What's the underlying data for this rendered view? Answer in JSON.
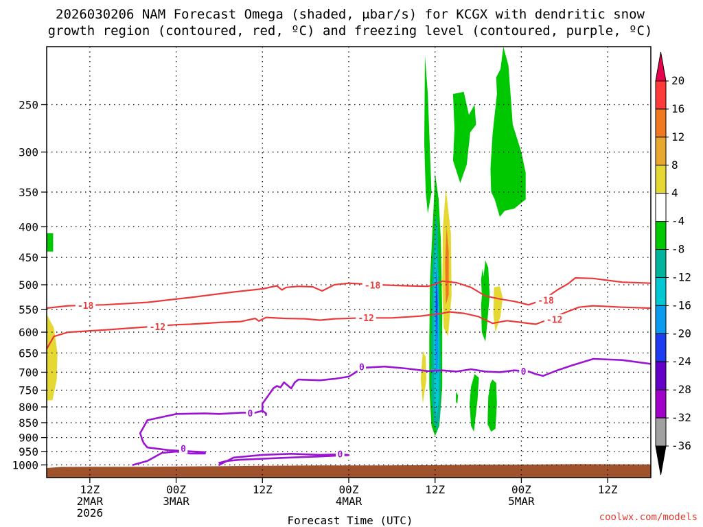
{
  "chart_data": {
    "type": "heatmap",
    "title_line1": "2026030206 NAM Forecast Omega (shaded, μbar/s) for KCGX with dendritic snow",
    "title_line2": "growth region (contoured, red, ºC) and freezing level (contoured, purple, ºC)",
    "xlabel": "Forecast Time (UTC)",
    "xlim": [
      6,
      90
    ],
    "ylim": [
      1050,
      200
    ],
    "y_ticks": [
      250,
      300,
      350,
      400,
      450,
      500,
      550,
      600,
      650,
      700,
      750,
      800,
      850,
      900,
      950,
      1000
    ],
    "x_ticks": [
      {
        "t": 12,
        "lines": [
          "12Z",
          "2MAR",
          "2026"
        ]
      },
      {
        "t": 24,
        "lines": [
          "00Z",
          "3MAR"
        ]
      },
      {
        "t": 36,
        "lines": [
          "12Z"
        ]
      },
      {
        "t": 48,
        "lines": [
          "00Z",
          "4MAR"
        ]
      },
      {
        "t": 60,
        "lines": [
          "12Z"
        ]
      },
      {
        "t": 72,
        "lines": [
          "00Z",
          "5MAR"
        ]
      },
      {
        "t": 84,
        "lines": [
          "12Z"
        ]
      }
    ],
    "grid": true,
    "colorbar": {
      "labels": [
        "20",
        "16",
        "12",
        "8",
        "4",
        "-4",
        "-8",
        "-12",
        "-16",
        "-20",
        "-24",
        "-28",
        "-32",
        "-36"
      ],
      "colors": [
        "#e8004f",
        "#ff3a3a",
        "#f07820",
        "#e8a830",
        "#e6d832",
        "#ffffff",
        "#00c800",
        "#00b49b",
        "#00c8d2",
        "#0a9bf0",
        "#1e3cf0",
        "#6400c8",
        "#a000c8",
        "#a0a0a0",
        "#000000"
      ]
    },
    "contour_labels": {
      "red_18": "-18",
      "red_12": "-12",
      "purple_0": "0"
    },
    "red_minus18": [
      [
        6,
        547
      ],
      [
        9,
        542
      ],
      [
        14,
        540
      ],
      [
        20,
        535
      ],
      [
        26,
        525
      ],
      [
        32,
        514
      ],
      [
        36,
        508
      ],
      [
        38,
        502
      ],
      [
        38.7,
        510
      ],
      [
        39.3,
        505
      ],
      [
        41,
        503
      ],
      [
        43,
        504
      ],
      [
        44.3,
        512
      ],
      [
        46,
        500
      ],
      [
        48,
        497
      ],
      [
        52,
        500
      ],
      [
        56,
        502
      ],
      [
        59,
        503
      ],
      [
        60,
        499
      ],
      [
        61,
        493
      ],
      [
        63,
        496
      ],
      [
        65,
        505
      ],
      [
        67,
        522
      ],
      [
        69,
        528
      ],
      [
        71,
        533
      ],
      [
        73,
        540
      ],
      [
        75,
        530
      ],
      [
        77,
        510
      ],
      [
        78.5,
        498
      ],
      [
        79.5,
        487
      ],
      [
        82,
        488
      ],
      [
        86,
        495
      ],
      [
        90,
        497
      ]
    ],
    "red_minus12": [
      [
        6,
        640
      ],
      [
        7,
        610
      ],
      [
        9,
        600
      ],
      [
        14,
        595
      ],
      [
        20,
        588
      ],
      [
        24,
        583
      ],
      [
        26,
        582
      ],
      [
        30,
        578
      ],
      [
        33,
        576
      ],
      [
        35,
        569
      ],
      [
        35.5,
        575
      ],
      [
        36.5,
        567
      ],
      [
        39,
        569
      ],
      [
        42,
        570
      ],
      [
        44,
        573
      ],
      [
        46,
        570
      ],
      [
        50,
        568
      ],
      [
        54,
        568
      ],
      [
        58,
        564
      ],
      [
        61,
        558
      ],
      [
        62,
        555
      ],
      [
        64,
        558
      ],
      [
        66,
        565
      ],
      [
        68,
        580
      ],
      [
        70,
        574
      ],
      [
        72,
        578
      ],
      [
        74,
        582
      ],
      [
        76,
        570
      ],
      [
        78,
        557
      ],
      [
        80,
        545
      ],
      [
        82,
        542
      ],
      [
        86,
        545
      ],
      [
        90,
        547
      ]
    ],
    "purple_0_main": [
      [
        18,
        1000
      ],
      [
        20,
        985
      ],
      [
        22,
        955
      ],
      [
        24,
        950
      ],
      [
        26,
        957
      ],
      [
        28,
        957
      ],
      [
        28,
        952
      ],
      [
        23,
        945
      ],
      [
        20,
        935
      ],
      [
        19.5,
        920
      ],
      [
        19.3,
        908
      ],
      [
        19,
        885
      ],
      [
        20,
        842
      ],
      [
        24,
        822
      ],
      [
        28,
        820
      ],
      [
        30,
        822
      ],
      [
        33,
        818
      ],
      [
        35,
        818
      ],
      [
        36,
        812
      ],
      [
        36.5,
        820
      ],
      [
        36.5,
        825
      ]
    ],
    "purple_0_upper": [
      [
        36,
        810
      ],
      [
        36,
        790
      ],
      [
        36.5,
        775
      ],
      [
        37,
        760
      ],
      [
        37.5,
        745
      ],
      [
        38,
        738
      ],
      [
        38.5,
        742
      ],
      [
        39,
        728
      ],
      [
        40,
        745
      ],
      [
        40.5,
        728
      ],
      [
        41,
        720
      ],
      [
        44,
        722
      ],
      [
        46,
        718
      ],
      [
        48,
        712
      ],
      [
        49,
        700
      ],
      [
        50,
        688
      ],
      [
        53,
        685
      ],
      [
        56,
        690
      ],
      [
        59,
        697
      ],
      [
        61,
        695
      ],
      [
        63,
        698
      ],
      [
        65,
        692
      ],
      [
        67,
        698
      ],
      [
        69,
        700
      ],
      [
        71,
        695
      ],
      [
        73,
        698
      ],
      [
        74,
        705
      ],
      [
        75,
        710
      ],
      [
        77,
        695
      ],
      [
        79,
        682
      ],
      [
        82,
        665
      ],
      [
        86,
        668
      ],
      [
        90,
        678
      ]
    ],
    "purple_0_low": [
      [
        30,
        1000
      ],
      [
        32,
        972
      ],
      [
        36,
        962
      ],
      [
        40,
        958
      ],
      [
        44,
        962
      ],
      [
        47,
        960
      ],
      [
        48,
        963
      ],
      [
        44,
        968
      ],
      [
        39,
        973
      ],
      [
        33,
        980
      ],
      [
        31,
        985
      ],
      [
        30,
        992
      ]
    ],
    "omega_shaded": [
      {
        "color": "#00c800",
        "points": [
          [
            58.6,
            207
          ],
          [
            59,
            240
          ],
          [
            59.5,
            350
          ],
          [
            59,
            380
          ],
          [
            58.7,
            350
          ],
          [
            58.5,
            290
          ]
        ]
      },
      {
        "color": "#00c800",
        "points": [
          [
            60,
            325
          ],
          [
            59.8,
            370
          ],
          [
            59.3,
            490
          ],
          [
            59.2,
            620
          ],
          [
            59.2,
            740
          ],
          [
            59.5,
            860
          ],
          [
            60,
            895
          ],
          [
            60.6,
            860
          ],
          [
            61,
            740
          ],
          [
            61,
            560
          ],
          [
            60.8,
            420
          ],
          [
            60.5,
            360
          ]
        ]
      },
      {
        "color": "#00b49b",
        "points": [
          [
            60.1,
            380
          ],
          [
            59.6,
            470
          ],
          [
            59.5,
            620
          ],
          [
            59.5,
            760
          ],
          [
            59.8,
            850
          ],
          [
            60.3,
            880
          ],
          [
            60.7,
            830
          ],
          [
            60.8,
            680
          ],
          [
            60.6,
            520
          ],
          [
            60.4,
            400
          ]
        ]
      },
      {
        "color": "#00c8d2",
        "points": [
          [
            60.1,
            430
          ],
          [
            59.8,
            500
          ],
          [
            59.8,
            640
          ],
          [
            59.9,
            780
          ],
          [
            60.2,
            830
          ],
          [
            60.5,
            780
          ],
          [
            60.6,
            620
          ],
          [
            60.4,
            480
          ]
        ]
      },
      {
        "color": "#0a9bf0",
        "points": [
          [
            60.15,
            460
          ],
          [
            60,
            540
          ],
          [
            60.05,
            660
          ],
          [
            60.25,
            720
          ],
          [
            60.45,
            660
          ],
          [
            60.4,
            520
          ]
        ]
      },
      {
        "color": "#1e3cf0",
        "points": [
          [
            60.2,
            470
          ],
          [
            60.1,
            540
          ],
          [
            60.25,
            620
          ],
          [
            60.35,
            540
          ]
        ]
      },
      {
        "color": "#e6d832",
        "points": [
          [
            61.5,
            345
          ],
          [
            61.1,
            400
          ],
          [
            61,
            500
          ],
          [
            61.2,
            590
          ],
          [
            61.8,
            610
          ],
          [
            62.3,
            520
          ],
          [
            62.2,
            410
          ]
        ]
      },
      {
        "color": "#f07820",
        "points": [
          [
            61.6,
            400
          ],
          [
            61.4,
            460
          ],
          [
            61.5,
            540
          ],
          [
            61.9,
            520
          ],
          [
            61.9,
            440
          ]
        ]
      },
      {
        "color": "#e6d832",
        "points": [
          [
            58.3,
            645
          ],
          [
            58,
            720
          ],
          [
            58.3,
            790
          ],
          [
            58.8,
            720
          ],
          [
            58.7,
            660
          ]
        ]
      },
      {
        "color": "#e6d832",
        "points": [
          [
            6,
            560
          ],
          [
            7,
            590
          ],
          [
            7.5,
            650
          ],
          [
            7.4,
            720
          ],
          [
            6.8,
            780
          ],
          [
            6,
            780
          ]
        ]
      },
      {
        "color": "#00c800",
        "points": [
          [
            6,
            410
          ],
          [
            6.9,
            410
          ],
          [
            6.9,
            440
          ],
          [
            6,
            440
          ]
        ]
      },
      {
        "color": "#00c800",
        "points": [
          [
            62.5,
            240
          ],
          [
            64,
            238
          ],
          [
            64.7,
            260
          ],
          [
            65.5,
            250
          ],
          [
            65.7,
            270
          ],
          [
            64.9,
            278
          ],
          [
            64.4,
            315
          ],
          [
            63.5,
            338
          ],
          [
            62.5,
            310
          ],
          [
            62.7,
            275
          ]
        ]
      },
      {
        "color": "#00c800",
        "points": [
          [
            67.8,
            350
          ],
          [
            67.7,
            320
          ],
          [
            68,
            280
          ],
          [
            68.6,
            240
          ],
          [
            68.5,
            225
          ],
          [
            69.1,
            218
          ],
          [
            69.5,
            200
          ],
          [
            70.2,
            215
          ],
          [
            70.8,
            270
          ],
          [
            72,
            300
          ],
          [
            72.6,
            325
          ],
          [
            72.6,
            360
          ],
          [
            71,
            373
          ],
          [
            69.7,
            376
          ],
          [
            69,
            385
          ],
          [
            68.3,
            360
          ]
        ]
      },
      {
        "color": "#00c800",
        "points": [
          [
            67,
            455
          ],
          [
            67.4,
            468
          ],
          [
            67.6,
            520
          ],
          [
            67.2,
            590
          ],
          [
            67,
            622
          ],
          [
            66.5,
            600
          ],
          [
            66.4,
            540
          ],
          [
            66.7,
            490
          ]
        ]
      },
      {
        "color": "#00c800",
        "points": [
          [
            66.6,
            470
          ],
          [
            66.8,
            490
          ],
          [
            66.5,
            520
          ],
          [
            66.4,
            490
          ]
        ]
      },
      {
        "color": "#e6d832",
        "points": [
          [
            68.2,
            505
          ],
          [
            69,
            503
          ],
          [
            69.4,
            525
          ],
          [
            69.1,
            565
          ],
          [
            68.4,
            600
          ],
          [
            68.1,
            560
          ]
        ]
      },
      {
        "color": "#00c800",
        "points": [
          [
            65.5,
            705
          ],
          [
            66.1,
            715
          ],
          [
            65.9,
            780
          ],
          [
            65.4,
            880
          ],
          [
            65,
            860
          ],
          [
            64.8,
            790
          ],
          [
            65,
            740
          ]
        ]
      },
      {
        "color": "#00c800",
        "points": [
          [
            68,
            720
          ],
          [
            68.5,
            730
          ],
          [
            68.6,
            790
          ],
          [
            68.4,
            870
          ],
          [
            67.8,
            880
          ],
          [
            67.3,
            855
          ],
          [
            67.4,
            770
          ],
          [
            67.7,
            730
          ]
        ]
      },
      {
        "color": "#00c800",
        "points": [
          [
            62.9,
            755
          ],
          [
            63.2,
            765
          ],
          [
            63.1,
            790
          ],
          [
            62.9,
            785
          ]
        ]
      }
    ],
    "terrain_color": "#a0522d",
    "terrain_top": [
      [
        6,
        1012
      ],
      [
        8,
        1008
      ],
      [
        12,
        1007
      ],
      [
        20,
        1007
      ],
      [
        30,
        1005
      ],
      [
        36,
        1003
      ],
      [
        44,
        1002
      ],
      [
        52,
        1002
      ],
      [
        60,
        1001
      ],
      [
        66,
        999
      ],
      [
        72,
        999
      ],
      [
        80,
        997
      ],
      [
        90,
        998
      ]
    ]
  },
  "credit": "coolwx.com/models"
}
